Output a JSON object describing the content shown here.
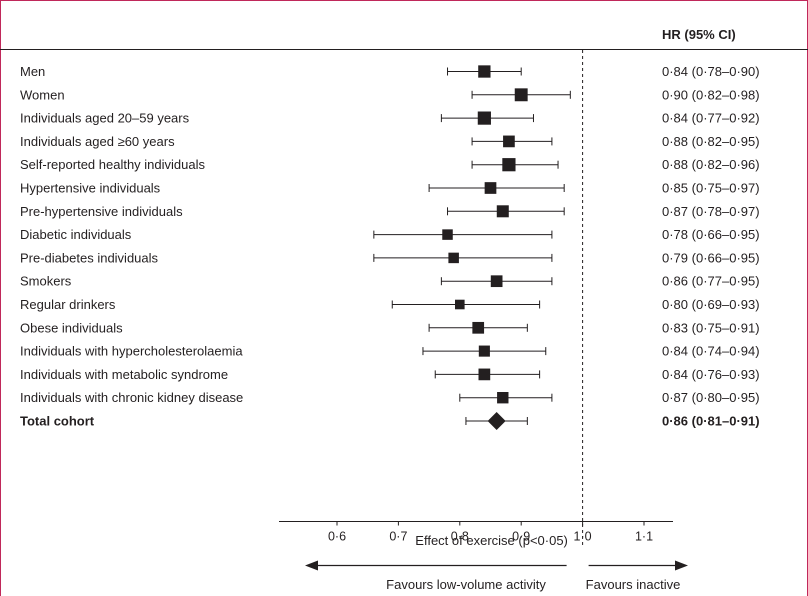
{
  "chart_data": {
    "type": "forest",
    "hr_header": "HR (95% CI)",
    "xlabel": "Effect of exercise (p<0·05)",
    "xlim": [
      0.53,
      1.18
    ],
    "xticks": [
      0.6,
      0.7,
      0.8,
      0.9,
      1.0,
      1.1
    ],
    "xtick_labels": [
      "0·6",
      "0·7",
      "0·8",
      "0·9",
      "1·0",
      "1·1"
    ],
    "reference_line": 1.0,
    "direction_left": "Favours low-volume activity",
    "direction_right": "Favours inactive",
    "rows": [
      {
        "label": "Men",
        "hr": 0.84,
        "lo": 0.78,
        "hi": 0.9,
        "text": "0·84 (0·78–0·90)",
        "weight": 1.05
      },
      {
        "label": "Women",
        "hr": 0.9,
        "lo": 0.82,
        "hi": 0.98,
        "text": "0·90 (0·82–0·98)",
        "weight": 1.15
      },
      {
        "label": "Individuals aged 20–59 years",
        "hr": 0.84,
        "lo": 0.77,
        "hi": 0.92,
        "text": "0·84 (0·77–0·92)",
        "weight": 1.2
      },
      {
        "label": "Individuals aged ≥60 years",
        "hr": 0.88,
        "lo": 0.82,
        "hi": 0.95,
        "text": "0·88 (0·82–0·95)",
        "weight": 0.95
      },
      {
        "label": "Self-reported healthy individuals",
        "hr": 0.88,
        "lo": 0.82,
        "hi": 0.96,
        "text": "0·88 (0·82–0·96)",
        "weight": 1.2
      },
      {
        "label": "Hypertensive individuals",
        "hr": 0.85,
        "lo": 0.75,
        "hi": 0.97,
        "text": "0·85 (0·75–0·97)",
        "weight": 0.95
      },
      {
        "label": "Pre-hypertensive individuals",
        "hr": 0.87,
        "lo": 0.78,
        "hi": 0.97,
        "text": "0·87 (0·78–0·97)",
        "weight": 1.0
      },
      {
        "label": "Diabetic individuals",
        "hr": 0.78,
        "lo": 0.66,
        "hi": 0.95,
        "text": "0·78 (0·66–0·95)",
        "weight": 0.75
      },
      {
        "label": "Pre-diabetes individuals",
        "hr": 0.79,
        "lo": 0.66,
        "hi": 0.95,
        "text": "0·79 (0·66–0·95)",
        "weight": 0.75
      },
      {
        "label": "Smokers",
        "hr": 0.86,
        "lo": 0.77,
        "hi": 0.95,
        "text": "0·86 (0·77–0·95)",
        "weight": 0.95
      },
      {
        "label": "Regular drinkers",
        "hr": 0.8,
        "lo": 0.69,
        "hi": 0.93,
        "text": "0·80 (0·69–0·93)",
        "weight": 0.6
      },
      {
        "label": "Obese individuals",
        "hr": 0.83,
        "lo": 0.75,
        "hi": 0.91,
        "text": "0·83 (0·75–0·91)",
        "weight": 0.95
      },
      {
        "label": "Individuals with hypercholesterolaemia",
        "hr": 0.84,
        "lo": 0.74,
        "hi": 0.94,
        "text": "0·84 (0·74–0·94)",
        "weight": 0.85
      },
      {
        "label": "Individuals with metabolic syndrome",
        "hr": 0.84,
        "lo": 0.76,
        "hi": 0.93,
        "text": "0·84 (0·76–0·93)",
        "weight": 0.95
      },
      {
        "label": "Individuals with chronic kidney disease",
        "hr": 0.87,
        "lo": 0.8,
        "hi": 0.95,
        "text": "0·87 (0·80–0·95)",
        "weight": 0.9
      },
      {
        "label": "Total cohort",
        "hr": 0.86,
        "lo": 0.81,
        "hi": 0.91,
        "text": "0·86 (0·81–0·91)",
        "summary": true
      }
    ],
    "colors": {
      "ink": "#231f20",
      "frame": "#c0285a"
    }
  }
}
